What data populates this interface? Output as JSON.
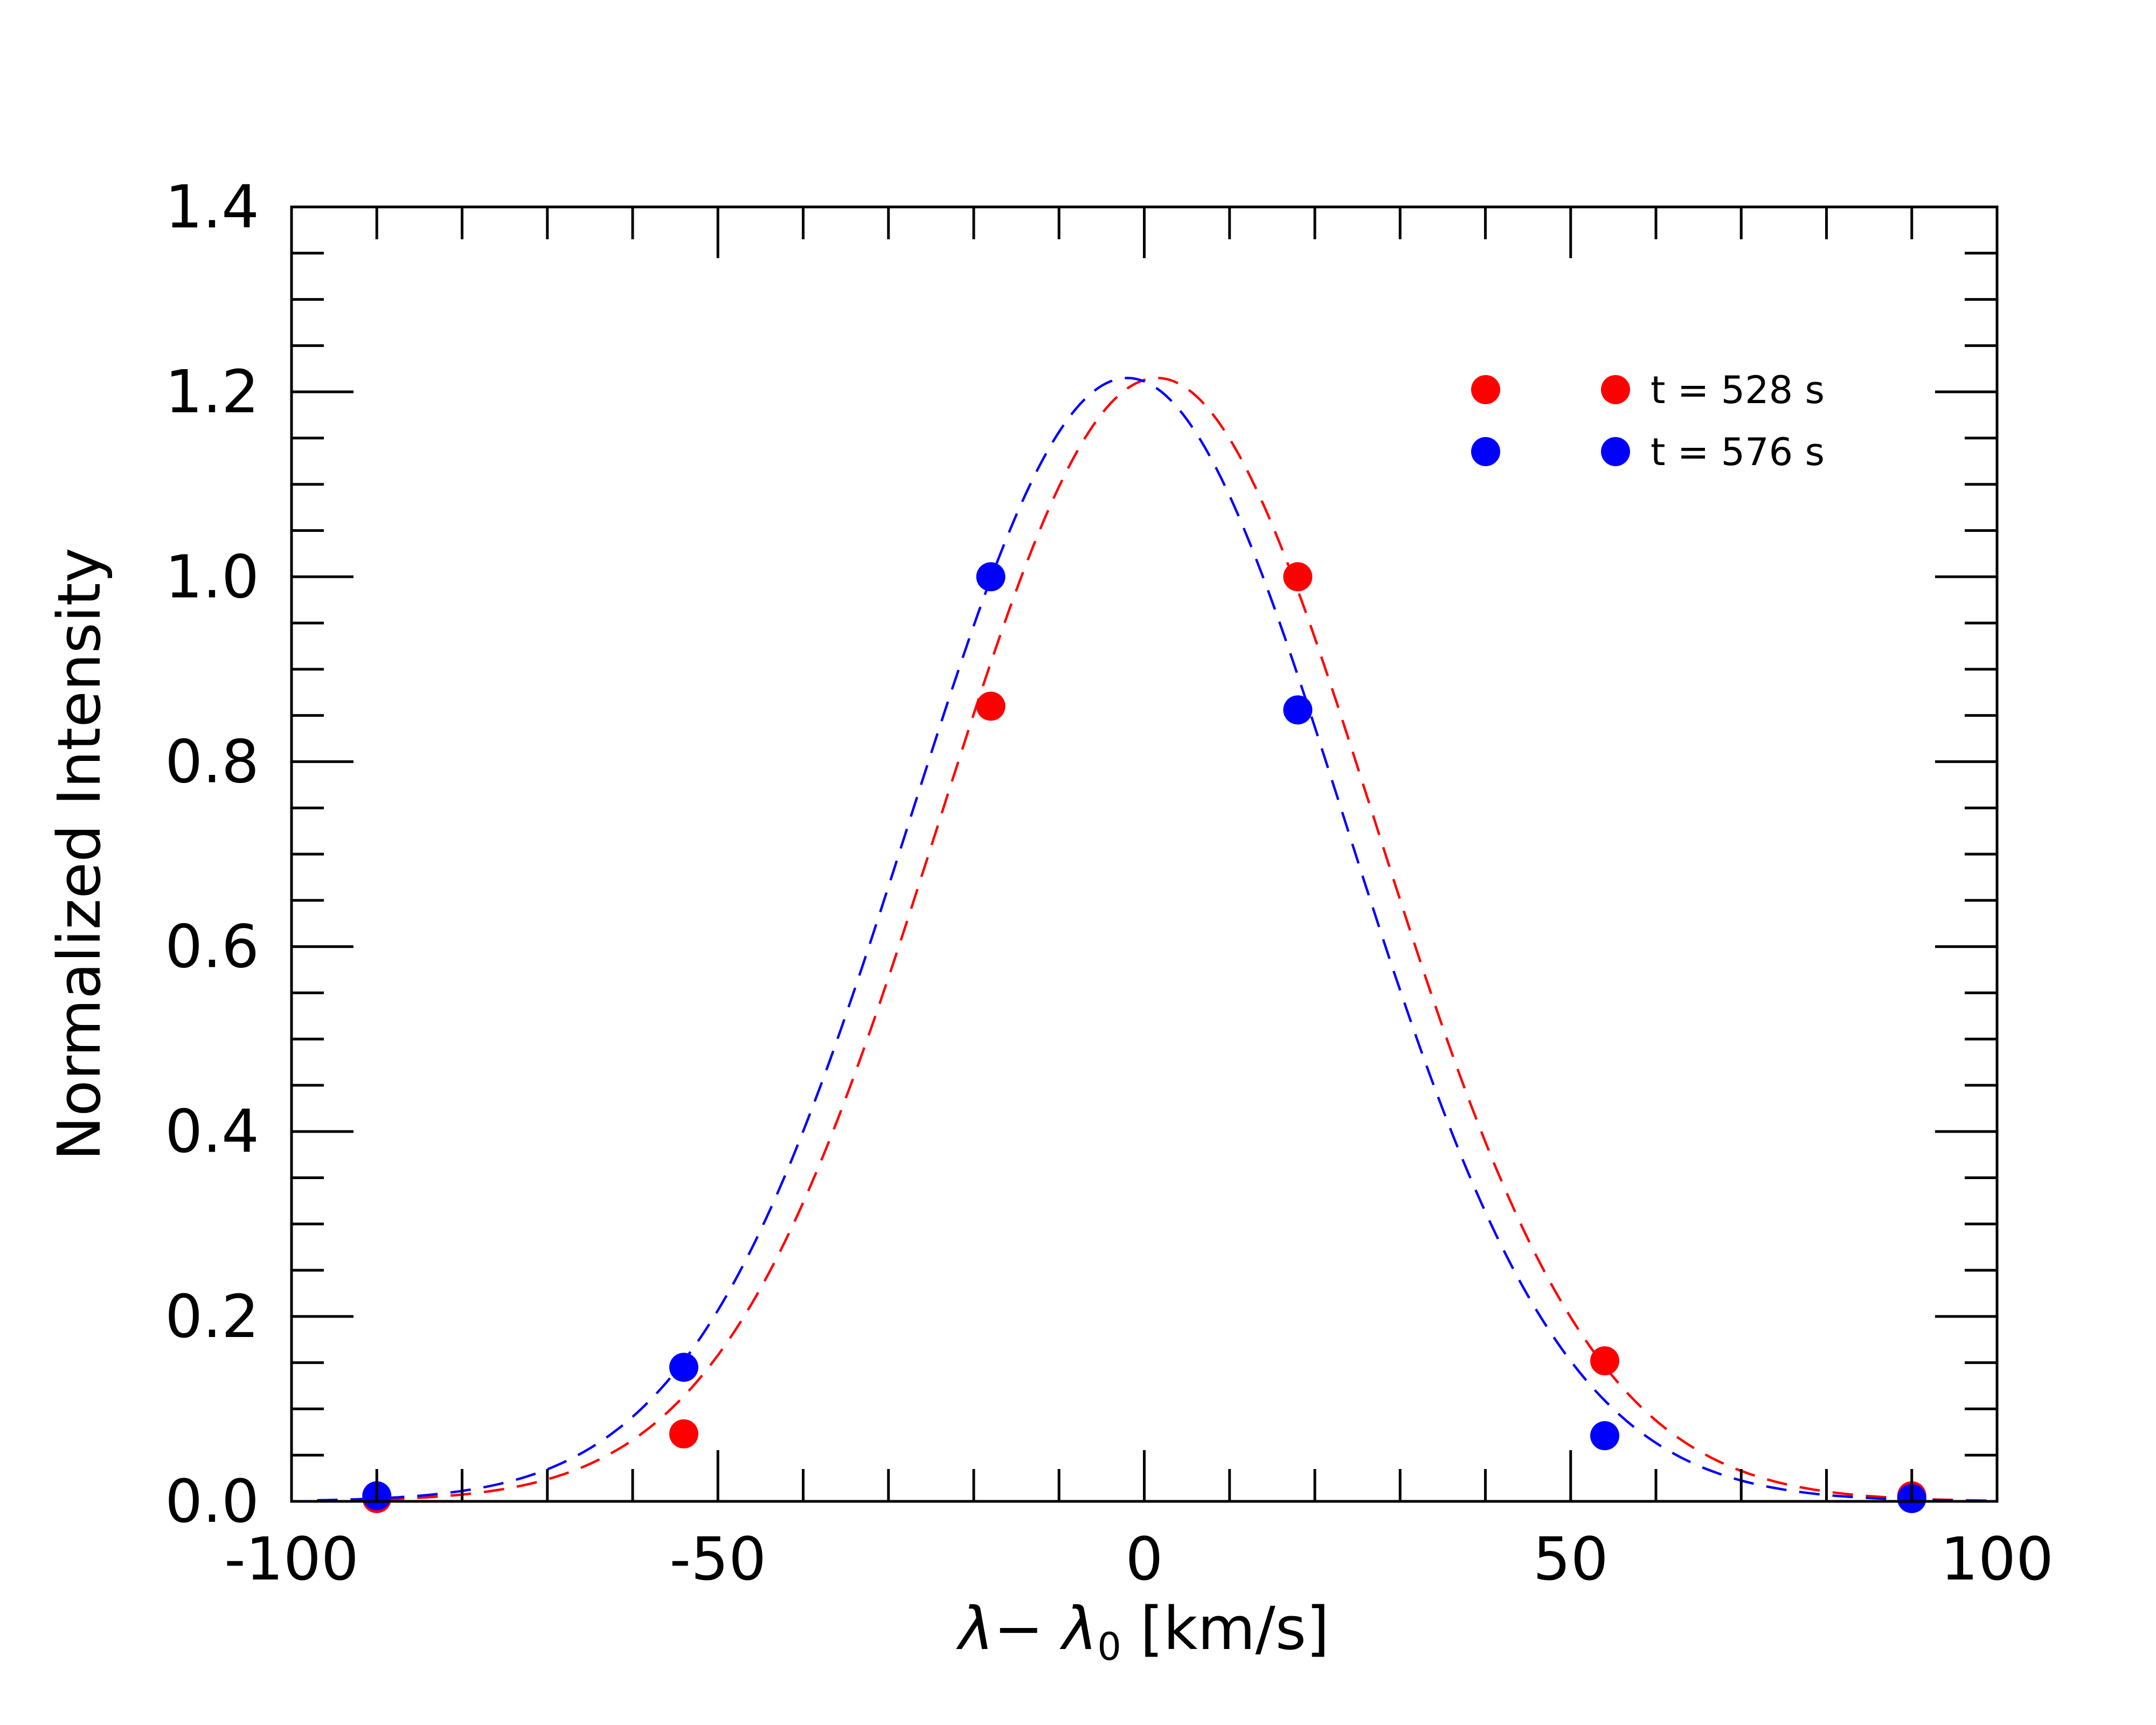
{
  "chart_data": {
    "type": "scatter",
    "title": "",
    "xlabel": "λ− λ₀ [km/s]",
    "xlabel_main": "λ− λ",
    "xlabel_sub": "0",
    "xlabel_unit": " [km/s]",
    "ylabel": "Normalized Intensity",
    "xlim": [
      -100,
      100
    ],
    "ylim": [
      0.0,
      1.4
    ],
    "xticks": [
      -100,
      -50,
      0,
      50,
      100
    ],
    "xtick_labels": [
      "-100",
      "-50",
      "0",
      "50",
      "100"
    ],
    "yticks": [
      0.0,
      0.2,
      0.4,
      0.6,
      0.8,
      1.0,
      1.2,
      1.4
    ],
    "ytick_labels": [
      "0.0",
      "0.2",
      "0.4",
      "0.6",
      "0.8",
      "1.0",
      "1.2",
      "1.4"
    ],
    "x_minor_step": 10,
    "y_minor_step": 0.05,
    "grid": false,
    "legend_position": "top-right",
    "series": [
      {
        "name": "t = 528 s",
        "color": "#ff0000",
        "points": [
          {
            "x": -90,
            "y": 0.003
          },
          {
            "x": -54,
            "y": 0.073
          },
          {
            "x": -18,
            "y": 0.86
          },
          {
            "x": 18,
            "y": 1.0
          },
          {
            "x": 54,
            "y": 0.152
          },
          {
            "x": 90,
            "y": 0.006
          }
        ],
        "fit": {
          "type": "gaussian",
          "amplitude": 1.215,
          "center": 1.5,
          "sigma": 25.5
        }
      },
      {
        "name": "t = 576 s",
        "color": "#0000ff",
        "points": [
          {
            "x": -90,
            "y": 0.006
          },
          {
            "x": -54,
            "y": 0.145
          },
          {
            "x": -18,
            "y": 1.0
          },
          {
            "x": 18,
            "y": 0.856
          },
          {
            "x": 54,
            "y": 0.071
          },
          {
            "x": 90,
            "y": 0.003
          }
        ],
        "fit": {
          "type": "gaussian",
          "amplitude": 1.215,
          "center": -2.0,
          "sigma": 25.5
        }
      }
    ]
  }
}
